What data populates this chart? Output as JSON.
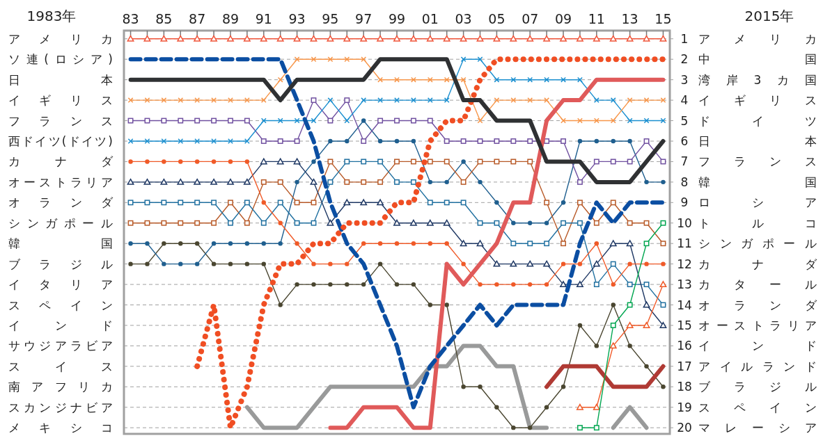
{
  "chart_data": {
    "type": "line",
    "ylabel": "1983年",
    "y2label": "2015年",
    "x": [
      1983,
      1984,
      1985,
      1986,
      1987,
      1988,
      1989,
      1990,
      1991,
      1992,
      1993,
      1994,
      1995,
      1996,
      1997,
      1998,
      1999,
      2000,
      2001,
      2002,
      2003,
      2004,
      2005,
      2006,
      2007,
      2008,
      2009,
      2010,
      2011,
      2012,
      2013,
      2014,
      2015
    ],
    "xlim": [
      1982.6,
      2015.4
    ],
    "xticks": [
      {
        "value": 1983,
        "label": "83"
      },
      {
        "value": 1984,
        "label": null
      },
      {
        "value": 1985,
        "label": "85"
      },
      {
        "value": 1986,
        "label": null
      },
      {
        "value": 1987,
        "label": "87"
      },
      {
        "value": 1988,
        "label": null
      },
      {
        "value": 1989,
        "label": "89"
      },
      {
        "value": 1990,
        "label": null
      },
      {
        "value": 1991,
        "label": "91"
      },
      {
        "value": 1992,
        "label": null
      },
      {
        "value": 1993,
        "label": "93"
      },
      {
        "value": 1994,
        "label": null
      },
      {
        "value": 1995,
        "label": "95"
      },
      {
        "value": 1996,
        "label": null
      },
      {
        "value": 1997,
        "label": "97"
      },
      {
        "value": 1998,
        "label": null
      },
      {
        "value": 1999,
        "label": "99"
      },
      {
        "value": 2000,
        "label": null
      },
      {
        "value": 2001,
        "label": "01"
      },
      {
        "value": 2002,
        "label": null
      },
      {
        "value": 2003,
        "label": "03"
      },
      {
        "value": 2004,
        "label": null
      },
      {
        "value": 2005,
        "label": "05"
      },
      {
        "value": 2006,
        "label": null
      },
      {
        "value": 2007,
        "label": "07"
      },
      {
        "value": 2008,
        "label": null
      },
      {
        "value": 2009,
        "label": "09"
      },
      {
        "value": 2010,
        "label": null
      },
      {
        "value": 2011,
        "label": "11"
      },
      {
        "value": 2012,
        "label": null
      },
      {
        "value": 2013,
        "label": "13"
      },
      {
        "value": 2014,
        "label": null
      },
      {
        "value": 2015,
        "label": "15"
      }
    ],
    "ylim": [
      20.3,
      0.6
    ],
    "yticks": [
      1,
      2,
      3,
      4,
      5,
      6,
      7,
      8,
      9,
      10,
      11,
      12,
      13,
      14,
      15,
      16,
      17,
      18,
      19,
      20
    ],
    "annotations": [
      "アメリカ",
      "ソ連(ロシア)",
      "日本",
      "イギリス",
      "フランス",
      "西ドイツ(ドイツ)",
      "カナダ",
      "オーストラリア",
      "オランダ",
      "シンガポール",
      "韓国",
      "ブラジル",
      "イタリア",
      "スペイン",
      "インド",
      "サウジアラビア",
      "スイス",
      "南アフリカ",
      "スカンジナビア",
      "メキシコ",
      "アメリカ",
      "中国",
      "湾岸3カ国",
      "イギリス",
      "ドイツ",
      "日本",
      "フランス",
      "韓国",
      "ロシア",
      "トルコ",
      "シンガポール",
      "カナダ",
      "カタール",
      "オランダ",
      "オーストラリア",
      "インド",
      "アイルランド",
      "ブラジル",
      "スペイン",
      "マレーシア"
    ],
    "grid": "y",
    "series": [
      {
        "color": "#999a9a",
        "marker": "none",
        "line_style": "solid",
        "values": [
          null,
          null,
          null,
          null,
          null,
          null,
          null,
          19,
          20,
          20,
          20,
          19,
          18,
          18,
          18,
          18,
          18,
          18,
          17,
          17,
          16,
          16,
          17,
          17,
          20,
          20,
          null,
          null,
          null,
          20,
          19,
          20,
          null
        ]
      },
      {
        "color": "#4a4630",
        "marker": "circle",
        "line_style": "solid",
        "values": [
          12,
          12,
          11,
          11,
          11,
          12,
          12,
          12,
          12,
          14,
          13,
          13,
          13,
          13,
          13,
          12,
          13,
          13,
          14,
          14,
          18,
          18,
          19,
          20,
          20,
          19,
          18,
          15,
          16,
          14,
          16,
          17,
          18
        ]
      },
      {
        "color": "#1f5f8f",
        "marker": "circle",
        "line_style": "solid",
        "values": [
          11,
          11,
          12,
          12,
          12,
          11,
          11,
          11,
          11,
          11,
          8,
          7,
          6,
          6,
          5,
          6,
          6,
          6,
          8,
          8,
          7,
          8,
          9,
          10,
          10,
          10,
          9,
          6,
          6,
          6,
          6,
          8,
          8
        ]
      },
      {
        "color": "#b85a28",
        "marker": "square",
        "line_style": "solid",
        "values": [
          10,
          10,
          10,
          10,
          10,
          10,
          9,
          10,
          8,
          8,
          9,
          9,
          7,
          8,
          8,
          8,
          7,
          7,
          7,
          7,
          8,
          7,
          7,
          7,
          7,
          9,
          11,
          9,
          10,
          9,
          10,
          10,
          11
        ]
      },
      {
        "color": "#2070a0",
        "marker": "square",
        "line_style": "solid",
        "values": [
          9,
          9,
          9,
          9,
          9,
          9,
          10,
          9,
          10,
          9,
          10,
          10,
          8,
          7,
          7,
          7,
          8,
          8,
          9,
          9,
          9,
          10,
          10,
          11,
          11,
          11,
          10,
          10,
          13,
          12,
          13,
          13,
          14
        ]
      },
      {
        "color": "#1f3864",
        "marker": "triangle",
        "line_style": "solid",
        "values": [
          8,
          8,
          8,
          8,
          8,
          8,
          8,
          8,
          7,
          7,
          7,
          8,
          10,
          9,
          9,
          9,
          10,
          10,
          10,
          10,
          11,
          11,
          12,
          12,
          12,
          12,
          13,
          13,
          12,
          11,
          11,
          14,
          15
        ]
      },
      {
        "color": "#f05a28",
        "marker": "circle",
        "line_style": "solid",
        "values": [
          7,
          7,
          7,
          7,
          7,
          7,
          7,
          7,
          9,
          10,
          11,
          12,
          12,
          12,
          11,
          11,
          11,
          11,
          11,
          11,
          12,
          13,
          13,
          13,
          13,
          13,
          12,
          12,
          11,
          13,
          12,
          12,
          12
        ]
      },
      {
        "color": "#7050a0",
        "marker": "square",
        "line_style": "solid",
        "values": [
          5,
          5,
          5,
          5,
          5,
          5,
          5,
          5,
          6,
          6,
          6,
          4,
          5,
          4,
          6,
          5,
          5,
          5,
          5,
          6,
          6,
          6,
          6,
          6,
          6,
          6,
          6,
          8,
          7,
          7,
          7,
          6,
          7
        ]
      },
      {
        "color": "#1a8fd0",
        "marker": "cross",
        "line_style": "solid",
        "values": [
          6,
          6,
          6,
          6,
          6,
          6,
          6,
          6,
          5,
          5,
          5,
          5,
          4,
          5,
          4,
          4,
          4,
          4,
          4,
          4,
          2,
          2,
          3,
          3,
          3,
          3,
          3,
          3,
          4,
          4,
          5,
          5,
          5
        ]
      },
      {
        "color": "#f7964a",
        "marker": "cross",
        "line_style": "solid",
        "values": [
          4,
          4,
          4,
          4,
          4,
          4,
          4,
          4,
          4,
          3,
          2,
          2,
          2,
          2,
          2,
          3,
          3,
          3,
          3,
          3,
          3,
          5,
          4,
          4,
          4,
          4,
          5,
          5,
          5,
          5,
          4,
          4,
          4
        ]
      },
      {
        "color": "#f0553a",
        "marker": "triangle",
        "line_style": "solid",
        "values": [
          1,
          1,
          1,
          1,
          1,
          1,
          1,
          1,
          1,
          1,
          1,
          1,
          1,
          1,
          1,
          1,
          1,
          1,
          1,
          1,
          1,
          1,
          1,
          1,
          1,
          1,
          1,
          1,
          1,
          1,
          1,
          1,
          1
        ]
      },
      {
        "color": "#b03a34",
        "marker": "none",
        "line_style": "solid",
        "values": [
          null,
          null,
          null,
          null,
          null,
          null,
          null,
          null,
          null,
          null,
          null,
          null,
          null,
          null,
          null,
          null,
          null,
          null,
          null,
          null,
          null,
          null,
          null,
          null,
          null,
          18,
          17,
          17,
          17,
          18,
          18,
          18,
          17
        ]
      },
      {
        "color": "#f05a28",
        "marker": "triangle",
        "line_style": "solid",
        "values": [
          null,
          null,
          null,
          null,
          null,
          null,
          null,
          null,
          null,
          null,
          null,
          null,
          null,
          null,
          null,
          null,
          null,
          null,
          null,
          null,
          null,
          null,
          null,
          null,
          null,
          null,
          null,
          19,
          19,
          16,
          15,
          15,
          13
        ]
      },
      {
        "color": "#00a650",
        "marker": "square",
        "line_style": "solid",
        "values": [
          null,
          null,
          null,
          null,
          null,
          null,
          null,
          null,
          null,
          null,
          null,
          null,
          null,
          null,
          null,
          null,
          null,
          null,
          null,
          null,
          null,
          null,
          null,
          null,
          null,
          null,
          null,
          20,
          20,
          15,
          14,
          11,
          10
        ]
      },
      {
        "color": "#e05a5a",
        "marker": "none",
        "line_style": "solid",
        "values": [
          null,
          null,
          null,
          null,
          null,
          null,
          null,
          null,
          null,
          null,
          null,
          null,
          20,
          20,
          19,
          19,
          19,
          20,
          20,
          12,
          13,
          12,
          11,
          9,
          9,
          5,
          4,
          4,
          3,
          3,
          3,
          3,
          3
        ]
      },
      {
        "color": "#0b4ea2",
        "marker": "none",
        "line_style": "dashed",
        "values": [
          2,
          2,
          2,
          2,
          2,
          2,
          2,
          2,
          2,
          2,
          4,
          6,
          9,
          11,
          12,
          14,
          16,
          19,
          17,
          16,
          15,
          14,
          15,
          14,
          14,
          14,
          14,
          11,
          9,
          10,
          9,
          9,
          9
        ]
      },
      {
        "color": "#f04e23",
        "marker": "none",
        "line_style": "dotted",
        "values": [
          null,
          null,
          null,
          null,
          17,
          14,
          20,
          18,
          14,
          12,
          12,
          11,
          11,
          10,
          10,
          10,
          9,
          9,
          6,
          5,
          5,
          3,
          2,
          2,
          2,
          2,
          2,
          2,
          2,
          2,
          2,
          2,
          2
        ]
      },
      {
        "color": "#2f3133",
        "marker": "none",
        "line_style": "solid",
        "values": [
          3,
          3,
          3,
          3,
          3,
          3,
          3,
          3,
          3,
          4,
          3,
          3,
          3,
          3,
          3,
          2,
          2,
          2,
          2,
          2,
          4,
          4,
          5,
          5,
          5,
          7,
          7,
          7,
          8,
          8,
          8,
          7,
          6
        ]
      }
    ]
  }
}
